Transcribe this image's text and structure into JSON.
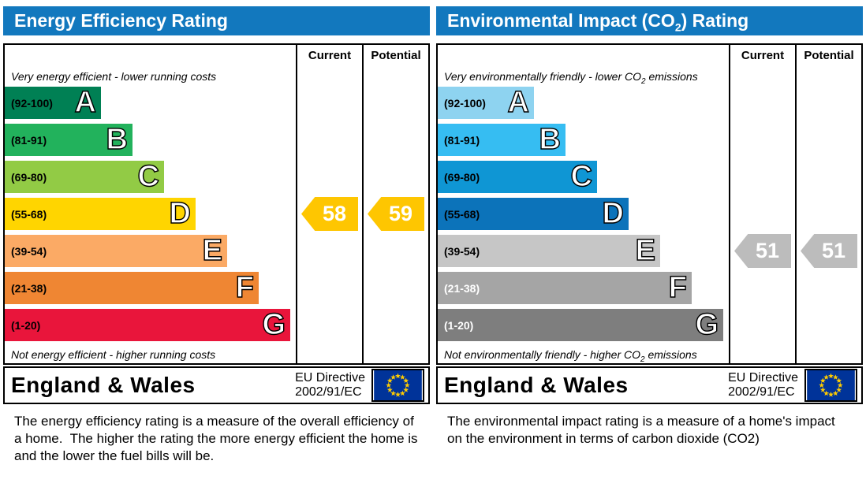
{
  "eu_flag": {
    "background": "#003399",
    "star_color": "#ffcc00"
  },
  "chart_data": [
    {
      "type": "bar",
      "title": "Energy Efficiency Rating",
      "title_parts": [
        "Energy Efficiency Rating",
        "",
        ""
      ],
      "header_color": "#1278be",
      "columns": [
        "Current",
        "Potential"
      ],
      "top_note_parts": [
        "Very energy efficient - lower running costs",
        "",
        ""
      ],
      "bottom_note_parts": [
        "Not energy efficient - higher running costs",
        "",
        ""
      ],
      "bands": [
        {
          "label": "A",
          "range": "(92-100)",
          "min": 92,
          "max": 100,
          "color": "#008054",
          "range_text_color": "#000000"
        },
        {
          "label": "B",
          "range": "(81-91)",
          "min": 81,
          "max": 91,
          "color": "#22b25c",
          "range_text_color": "#000000"
        },
        {
          "label": "C",
          "range": "(69-80)",
          "min": 69,
          "max": 80,
          "color": "#92cb45",
          "range_text_color": "#000000"
        },
        {
          "label": "D",
          "range": "(55-68)",
          "min": 55,
          "max": 68,
          "color": "#ffd500",
          "range_text_color": "#000000"
        },
        {
          "label": "E",
          "range": "(39-54)",
          "min": 39,
          "max": 54,
          "color": "#fbaa65",
          "range_text_color": "#000000"
        },
        {
          "label": "F",
          "range": "(21-38)",
          "min": 21,
          "max": 38,
          "color": "#ef8633",
          "range_text_color": "#000000"
        },
        {
          "label": "G",
          "range": "(1-20)",
          "min": 1,
          "max": 20,
          "color": "#e9153b",
          "range_text_color": "#000000"
        }
      ],
      "current": 58,
      "potential": 59,
      "arrow_color": "#fec601",
      "arrow_text_color": "#ffffff",
      "footer": {
        "region": "England & Wales",
        "directive_line1": "EU Directive",
        "directive_line2": "2002/91/EC"
      },
      "caption": "The energy efficiency rating is a measure of the overall efficiency of a home.  The higher the rating the more energy efficient the home is and the lower the fuel bills will be."
    },
    {
      "type": "bar",
      "title": "Environmental Impact (CO2) Rating",
      "title_parts": [
        "Environmental Impact (CO",
        "2",
        ") Rating"
      ],
      "header_color": "#1278be",
      "columns": [
        "Current",
        "Potential"
      ],
      "top_note_parts": [
        "Very environmentally friendly - lower CO",
        "2",
        " emissions"
      ],
      "bottom_note_parts": [
        "Not environmentally friendly - higher CO",
        "2",
        " emissions"
      ],
      "bands": [
        {
          "label": "A",
          "range": "(92-100)",
          "min": 92,
          "max": 100,
          "color": "#8ed3f0",
          "range_text_color": "#000000"
        },
        {
          "label": "B",
          "range": "(81-91)",
          "min": 81,
          "max": 91,
          "color": "#36bdf2",
          "range_text_color": "#000000"
        },
        {
          "label": "C",
          "range": "(69-80)",
          "min": 69,
          "max": 80,
          "color": "#0f96d4",
          "range_text_color": "#000000"
        },
        {
          "label": "D",
          "range": "(55-68)",
          "min": 55,
          "max": 68,
          "color": "#0c73ba",
          "range_text_color": "#000000"
        },
        {
          "label": "E",
          "range": "(39-54)",
          "min": 39,
          "max": 54,
          "color": "#c6c6c6",
          "range_text_color": "#000000"
        },
        {
          "label": "F",
          "range": "(21-38)",
          "min": 21,
          "max": 38,
          "color": "#a5a5a5",
          "range_text_color": "#ffffff"
        },
        {
          "label": "G",
          "range": "(1-20)",
          "min": 1,
          "max": 20,
          "color": "#7e7e7e",
          "range_text_color": "#ffffff"
        }
      ],
      "current": 51,
      "potential": 51,
      "arrow_color": "#bcbcbc",
      "arrow_text_color": "#ffffff",
      "footer": {
        "region": "England & Wales",
        "directive_line1": "EU Directive",
        "directive_line2": "2002/91/EC"
      },
      "caption": "The environmental impact rating is a measure of a home's impact on the environment in terms of carbon dioxide (CO2)"
    }
  ]
}
